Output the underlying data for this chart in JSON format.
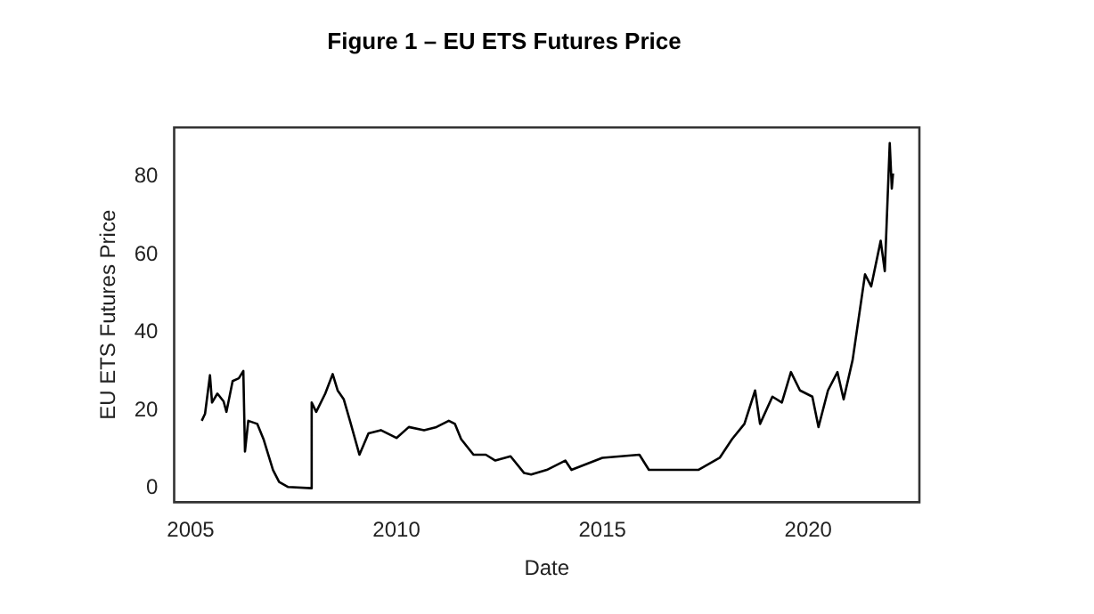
{
  "chart_data": {
    "type": "line",
    "title": "Figure 1 – EU ETS Futures Price",
    "xlabel": "Date",
    "ylabel": "EU ETS Futures Price",
    "x": [
      2005.27,
      2005.35,
      2005.47,
      2005.52,
      2005.65,
      2005.8,
      2005.87,
      2006.02,
      2006.17,
      2006.28,
      2006.32,
      2006.4,
      2006.62,
      2006.77,
      2007.0,
      2007.15,
      2007.37,
      2007.93,
      2007.94,
      2008.05,
      2008.27,
      2008.45,
      2008.57,
      2008.72,
      2008.87,
      2009.1,
      2009.32,
      2009.62,
      2010.0,
      2010.3,
      2010.67,
      2010.97,
      2011.27,
      2011.42,
      2011.57,
      2011.87,
      2012.17,
      2012.4,
      2012.77,
      2013.1,
      2013.27,
      2013.65,
      2014.1,
      2014.25,
      2015.0,
      2015.9,
      2016.13,
      2016.65,
      2017.33,
      2017.85,
      2018.15,
      2018.45,
      2018.71,
      2018.83,
      2019.13,
      2019.36,
      2019.58,
      2019.8,
      2020.1,
      2020.25,
      2020.48,
      2020.71,
      2020.86,
      2021.08,
      2021.38,
      2021.53,
      2021.76,
      2021.86,
      2021.98,
      2022.03,
      2022.06
    ],
    "series": [
      {
        "color": "#000000",
        "values": [
          17.3,
          19.1,
          29.0,
          22,
          24.3,
          22.3,
          19.6,
          27.5,
          28.2,
          30.1,
          9.4,
          17.3,
          16.5,
          12.6,
          4.7,
          1.6,
          0.3,
          0,
          22,
          19.6,
          24.3,
          29.3,
          25.1,
          22.8,
          17.3,
          8.6,
          14.1,
          14.9,
          12.9,
          15.7,
          14.9,
          15.7,
          17.3,
          16.5,
          12.6,
          8.6,
          8.6,
          7.1,
          8.2,
          3.9,
          3.5,
          4.7,
          7.1,
          4.7,
          7.8,
          8.6,
          4.7,
          4.7,
          4.7,
          7.8,
          12.6,
          16.5,
          25.1,
          16.5,
          23.5,
          22,
          29.8,
          25.1,
          23.5,
          15.7,
          25.1,
          29.8,
          22.8,
          33,
          54.9,
          51.8,
          63.5,
          55.7,
          88.6,
          76.9,
          80.8
        ]
      }
    ],
    "xlim": [
      2004.6,
      2022.7
    ],
    "xticks": [
      2005,
      2010,
      2015,
      2020
    ],
    "ylim": [
      -3.6,
      92.6
    ],
    "yticks": [
      0,
      20,
      40,
      60,
      80
    ],
    "grid": false,
    "legend": false,
    "marker": "none",
    "line_style": "solid"
  }
}
